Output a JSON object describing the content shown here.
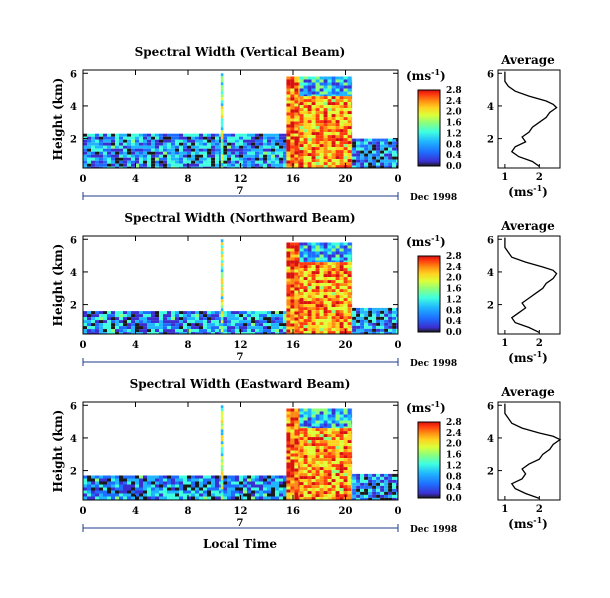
{
  "colors": {
    "colormap": [
      "#ffffff",
      "#1a1a1a",
      "#3b2fd0",
      "#1f6dff",
      "#1fb5ff",
      "#3fffe0",
      "#8dff7a",
      "#dcff3a",
      "#ffd11f",
      "#ff8a12",
      "#ff3b0e",
      "#d8100e"
    ],
    "axis": "#000000",
    "average_line": "#000000"
  },
  "shared": {
    "date_label": "Dec 1998",
    "local_time_label": "Local Time",
    "day_label": "7",
    "units_label": "(ms",
    "units_exp": "-1",
    "units_close": ")",
    "avg_title": "Average",
    "avg_xlabel": "(ms",
    "avg_xlabel_exp": "-1",
    "avg_xlabel_close": ")"
  },
  "chart_data": [
    {
      "type": "heatmap",
      "title": "Spectral Width (Vertical Beam)",
      "ylabel": "Height (km)",
      "xlabel": "Local Time",
      "x_ticks": [
        "0",
        "4",
        "8",
        "12",
        "16",
        "20",
        "0"
      ],
      "x_tick_values": [
        0,
        4,
        8,
        12,
        16,
        20,
        24
      ],
      "y_ticks": [
        "2",
        "4",
        "6"
      ],
      "y_tick_values": [
        2,
        4,
        6
      ],
      "xlim": [
        0,
        24
      ],
      "ylim": [
        0.2,
        6.2
      ],
      "colorbar": {
        "min": 0.0,
        "max": 2.8,
        "ticks": [
          "0.0",
          "0.4",
          "0.8",
          "1.2",
          "1.6",
          "2.0",
          "2.4",
          "2.8"
        ]
      },
      "regions": [
        {
          "x": [
            0,
            15.5
          ],
          "y": [
            0.2,
            2.3
          ],
          "value": 0.7
        },
        {
          "x": [
            15.5,
            16.5
          ],
          "y": [
            0.2,
            5.8
          ],
          "value": 2.3
        },
        {
          "x": [
            16.5,
            20.5
          ],
          "y": [
            0.2,
            4.6
          ],
          "value": 2.1
        },
        {
          "x": [
            16.5,
            20.5
          ],
          "y": [
            4.6,
            5.8
          ],
          "value": 0.9
        },
        {
          "x": [
            20.5,
            24
          ],
          "y": [
            0.2,
            2.0
          ],
          "value": 0.6
        },
        {
          "x": [
            10.5,
            10.7
          ],
          "y": [
            0.2,
            6.0
          ],
          "value": 1.4
        }
      ]
    },
    {
      "type": "heatmap",
      "title": "Spectral Width (Northward Beam)",
      "ylabel": "Height (km)",
      "xlabel": "Local Time",
      "x_ticks": [
        "0",
        "4",
        "8",
        "12",
        "16",
        "20",
        "0"
      ],
      "x_tick_values": [
        0,
        4,
        8,
        12,
        16,
        20,
        24
      ],
      "y_ticks": [
        "2",
        "4",
        "6"
      ],
      "y_tick_values": [
        2,
        4,
        6
      ],
      "xlim": [
        0,
        24
      ],
      "ylim": [
        0.2,
        6.2
      ],
      "colorbar": {
        "min": 0.0,
        "max": 2.8,
        "ticks": [
          "0.0",
          "0.4",
          "0.8",
          "1.2",
          "1.6",
          "2.0",
          "2.4",
          "2.8"
        ]
      },
      "regions": [
        {
          "x": [
            0,
            15.5
          ],
          "y": [
            0.2,
            1.6
          ],
          "value": 0.7
        },
        {
          "x": [
            15.5,
            16.5
          ],
          "y": [
            0.2,
            5.8
          ],
          "value": 2.3
        },
        {
          "x": [
            16.5,
            20.5
          ],
          "y": [
            0.2,
            4.6
          ],
          "value": 2.1
        },
        {
          "x": [
            16.5,
            20.5
          ],
          "y": [
            4.6,
            5.8
          ],
          "value": 0.9
        },
        {
          "x": [
            20.5,
            24
          ],
          "y": [
            0.2,
            1.8
          ],
          "value": 0.6
        },
        {
          "x": [
            10.5,
            10.7
          ],
          "y": [
            0.2,
            6.0
          ],
          "value": 1.4
        }
      ]
    },
    {
      "type": "heatmap",
      "title": "Spectral Width (Eastward Beam)",
      "ylabel": "Height (km)",
      "xlabel": "Local Time",
      "x_ticks": [
        "0",
        "4",
        "8",
        "12",
        "16",
        "20",
        "0"
      ],
      "x_tick_values": [
        0,
        4,
        8,
        12,
        16,
        20,
        24
      ],
      "y_ticks": [
        "2",
        "4",
        "6"
      ],
      "y_tick_values": [
        2,
        4,
        6
      ],
      "xlim": [
        0,
        24
      ],
      "ylim": [
        0.2,
        6.2
      ],
      "colorbar": {
        "min": 0.0,
        "max": 2.8,
        "ticks": [
          "0.0",
          "0.4",
          "0.8",
          "1.2",
          "1.6",
          "2.0",
          "2.4",
          "2.8"
        ]
      },
      "regions": [
        {
          "x": [
            0,
            15.5
          ],
          "y": [
            0.2,
            1.7
          ],
          "value": 0.7
        },
        {
          "x": [
            15.5,
            16.5
          ],
          "y": [
            0.2,
            5.8
          ],
          "value": 2.3
        },
        {
          "x": [
            16.5,
            20.5
          ],
          "y": [
            0.2,
            4.6
          ],
          "value": 2.1
        },
        {
          "x": [
            16.5,
            20.5
          ],
          "y": [
            4.6,
            5.8
          ],
          "value": 0.9
        },
        {
          "x": [
            20.5,
            24
          ],
          "y": [
            0.2,
            1.8
          ],
          "value": 0.6
        },
        {
          "x": [
            10.5,
            10.7
          ],
          "y": [
            0.2,
            6.0
          ],
          "value": 1.4
        }
      ]
    },
    {
      "type": "line",
      "title": "Average",
      "xlabel": "(ms-1)",
      "xlim": [
        0.8,
        2.6
      ],
      "ylim": [
        0.2,
        6.2
      ],
      "x_ticks": [
        "1",
        "2"
      ],
      "x_tick_values": [
        1,
        2
      ],
      "y_ticks": [
        "2",
        "4",
        "6"
      ],
      "y_tick_values": [
        2,
        4,
        6
      ],
      "profile": {
        "height": [
          0.3,
          0.6,
          0.9,
          1.2,
          1.5,
          1.8,
          2.1,
          2.4,
          2.7,
          3.0,
          3.3,
          3.6,
          3.9,
          4.1,
          4.3,
          4.6,
          4.9,
          5.2,
          5.5,
          5.8,
          6.1
        ],
        "value": [
          2.0,
          1.8,
          1.4,
          1.2,
          1.3,
          1.6,
          1.5,
          1.7,
          1.8,
          2.0,
          2.2,
          2.3,
          2.5,
          2.4,
          2.2,
          1.7,
          1.3,
          1.1,
          1.0,
          1.0,
          1.0
        ]
      }
    },
    {
      "type": "line",
      "title": "Average",
      "xlabel": "(ms-1)",
      "xlim": [
        0.8,
        2.6
      ],
      "ylim": [
        0.2,
        6.2
      ],
      "x_ticks": [
        "1",
        "2"
      ],
      "x_tick_values": [
        1,
        2
      ],
      "y_ticks": [
        "2",
        "4",
        "6"
      ],
      "y_tick_values": [
        2,
        4,
        6
      ],
      "profile": {
        "height": [
          0.3,
          0.6,
          0.9,
          1.2,
          1.5,
          1.8,
          2.1,
          2.4,
          2.7,
          3.0,
          3.3,
          3.6,
          3.9,
          4.1,
          4.3,
          4.6,
          4.9,
          5.2,
          5.5,
          5.8,
          6.1
        ],
        "value": [
          2.0,
          1.7,
          1.3,
          1.2,
          1.4,
          1.6,
          1.5,
          1.7,
          1.9,
          2.1,
          2.2,
          2.4,
          2.5,
          2.4,
          2.1,
          1.6,
          1.2,
          1.1,
          1.0,
          1.0,
          1.0
        ]
      }
    },
    {
      "type": "line",
      "title": "Average",
      "xlabel": "(ms-1)",
      "xlim": [
        0.8,
        2.6
      ],
      "ylim": [
        0.2,
        6.2
      ],
      "x_ticks": [
        "1",
        "2"
      ],
      "x_tick_values": [
        1,
        2
      ],
      "y_ticks": [
        "2",
        "4",
        "6"
      ],
      "y_tick_values": [
        2,
        4,
        6
      ],
      "profile": {
        "height": [
          0.3,
          0.6,
          0.9,
          1.2,
          1.5,
          1.8,
          2.1,
          2.4,
          2.7,
          3.0,
          3.3,
          3.6,
          3.9,
          4.1,
          4.3,
          4.6,
          4.9,
          5.2,
          5.5,
          5.8,
          6.1
        ],
        "value": [
          2.0,
          1.6,
          1.3,
          1.2,
          1.5,
          1.6,
          1.5,
          1.7,
          2.0,
          2.1,
          2.3,
          2.4,
          2.6,
          2.4,
          2.0,
          1.5,
          1.2,
          1.1,
          1.0,
          1.0,
          1.0
        ]
      }
    }
  ]
}
